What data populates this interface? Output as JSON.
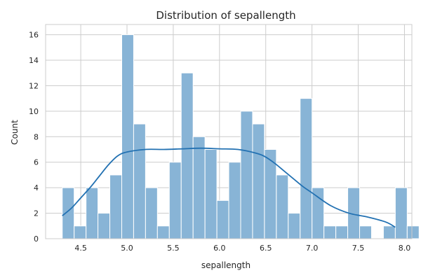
{
  "chart_data": {
    "type": "bar",
    "title": "Distribution of sepallength",
    "xlabel": "sepallength",
    "ylabel": "Count",
    "xlim": [
      4.12,
      8.08
    ],
    "ylim": [
      0,
      16.8
    ],
    "grid": true,
    "x_ticks": [
      "4.5",
      "5.0",
      "5.5",
      "6.0",
      "6.5",
      "7.0",
      "7.5",
      "8.0"
    ],
    "y_ticks": [
      "0",
      "2",
      "4",
      "6",
      "8",
      "10",
      "12",
      "14",
      "16"
    ],
    "bins": {
      "start": 4.3,
      "width": 0.1286,
      "counts": [
        4,
        1,
        4,
        2,
        5,
        16,
        9,
        4,
        1,
        6,
        13,
        8,
        7,
        3,
        6,
        10,
        9,
        7,
        5,
        2,
        11,
        4,
        1,
        1,
        4,
        1,
        0,
        1,
        4,
        1
      ]
    },
    "kde": {
      "x": [
        4.3,
        4.4,
        4.5,
        4.6,
        4.7,
        4.8,
        4.9,
        5.0,
        5.2,
        5.4,
        5.6,
        5.8,
        6.0,
        6.2,
        6.4,
        6.5,
        6.6,
        6.7,
        6.8,
        6.9,
        7.0,
        7.2,
        7.4,
        7.6,
        7.8,
        7.9
      ],
      "y": [
        1.8,
        2.4,
        3.2,
        4.0,
        4.9,
        5.8,
        6.5,
        6.8,
        7.0,
        7.0,
        7.05,
        7.1,
        7.05,
        7.0,
        6.7,
        6.4,
        5.9,
        5.3,
        4.7,
        4.1,
        3.6,
        2.6,
        2.0,
        1.7,
        1.3,
        0.9
      ]
    }
  }
}
